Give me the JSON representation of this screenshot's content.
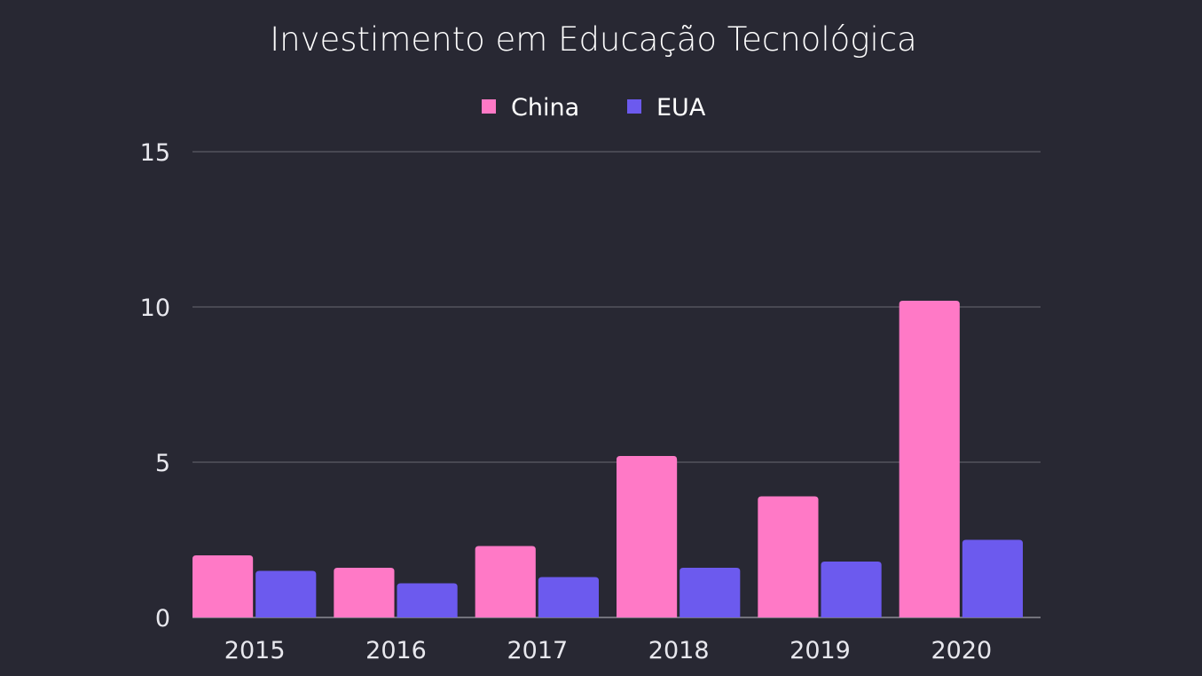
{
  "chart_data": {
    "type": "bar",
    "title": "Investimento em Educação Tecnológica",
    "categories": [
      "2015",
      "2016",
      "2017",
      "2018",
      "2019",
      "2020"
    ],
    "series": [
      {
        "name": "China",
        "color": "#ff79c6",
        "values": [
          2.0,
          1.6,
          2.3,
          5.2,
          3.9,
          10.2
        ]
      },
      {
        "name": "EUA",
        "color": "#6c5aee",
        "values": [
          1.5,
          1.1,
          1.3,
          1.6,
          1.8,
          2.5
        ]
      }
    ],
    "yticks": [
      0,
      5,
      10,
      15
    ],
    "ylim": [
      0,
      15
    ],
    "grid": true,
    "legend_position": "top-center",
    "background": "#282833"
  }
}
